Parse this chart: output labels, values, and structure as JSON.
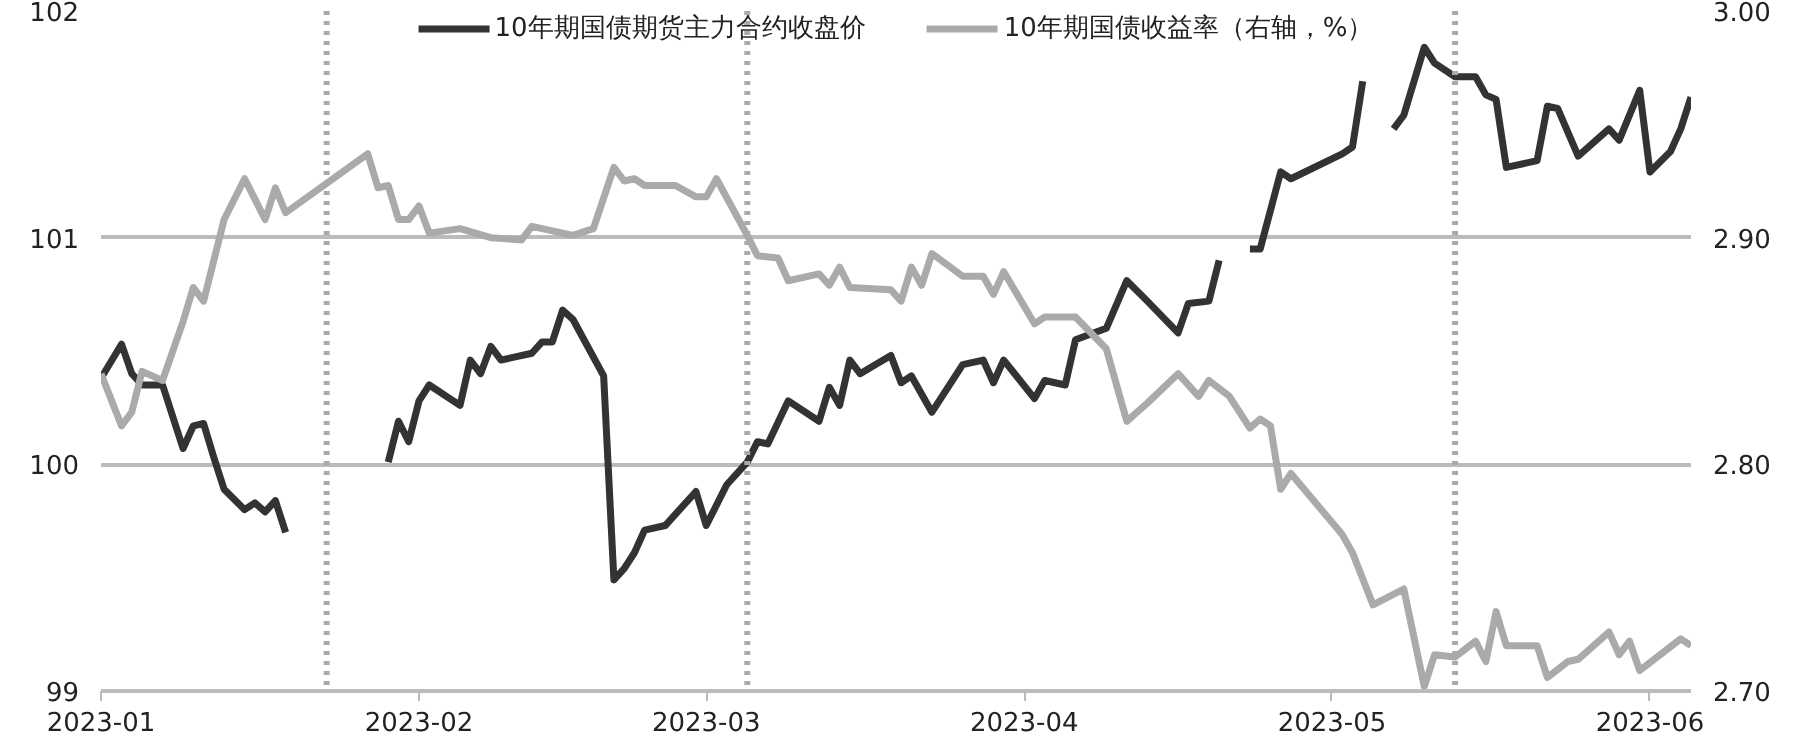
{
  "chart_data": {
    "type": "line",
    "xlim": [
      "2023-01-01",
      "2023-06-05"
    ],
    "xticks": [
      {
        "value": "2023-01-01",
        "label": "2023-01"
      },
      {
        "value": "2023-02-01",
        "label": "2023-02"
      },
      {
        "value": "2023-03-01",
        "label": "2023-03"
      },
      {
        "value": "2023-04-01",
        "label": "2023-04"
      },
      {
        "value": "2023-05-01",
        "label": "2023-05"
      },
      {
        "value": "2023-06-01",
        "label": "2023-06"
      }
    ],
    "ylim": [
      99,
      102
    ],
    "yticks": [
      99,
      100,
      101,
      102
    ],
    "y2lim": [
      2.7,
      3.0
    ],
    "y2ticks": [
      {
        "value": 2.7,
        "label": "2.70"
      },
      {
        "value": 2.8,
        "label": "2.80"
      },
      {
        "value": 2.9,
        "label": "2.90"
      },
      {
        "value": 3.0,
        "label": "3.00"
      }
    ],
    "grid": "y",
    "legend": "top",
    "line_style": "solid",
    "series": [
      {
        "name": "10年期国债期货主力合约收盘价",
        "color": "#333333",
        "x": [
          "2023-01-01",
          "2023-01-03",
          "2023-01-04",
          "2023-01-05",
          "2023-01-07",
          "2023-01-09",
          "2023-01-10",
          "2023-01-11",
          "2023-01-12",
          "2023-01-13",
          "2023-01-15",
          "2023-01-16",
          "2023-01-17",
          "2023-01-18",
          "2023-01-19",
          "2023-01-24",
          "2023-01-29",
          "2023-01-30",
          "2023-01-31",
          "2023-02-01",
          "2023-02-02",
          "2023-02-05",
          "2023-02-06",
          "2023-02-07",
          "2023-02-08",
          "2023-02-09",
          "2023-02-12",
          "2023-02-13",
          "2023-02-14",
          "2023-02-15",
          "2023-02-16",
          "2023-02-19",
          "2023-02-20",
          "2023-02-21",
          "2023-02-22",
          "2023-02-23",
          "2023-02-25",
          "2023-02-28",
          "2023-03-01",
          "2023-03-03",
          "2023-03-05",
          "2023-03-06",
          "2023-03-07",
          "2023-03-09",
          "2023-03-12",
          "2023-03-13",
          "2023-03-14",
          "2023-03-15",
          "2023-03-16",
          "2023-03-19",
          "2023-03-20",
          "2023-03-21",
          "2023-03-23",
          "2023-03-26",
          "2023-03-28",
          "2023-03-29",
          "2023-03-30",
          "2023-04-02",
          "2023-04-03",
          "2023-04-05",
          "2023-04-06",
          "2023-04-09",
          "2023-04-11",
          "2023-04-13",
          "2023-04-16",
          "2023-04-17",
          "2023-04-19",
          "2023-04-20",
          "2023-04-21",
          "2023-04-23",
          "2023-04-24",
          "2023-04-26",
          "2023-04-27",
          "2023-05-02",
          "2023-05-03",
          "2023-05-04",
          "2023-05-05",
          "2023-05-07",
          "2023-05-08",
          "2023-05-10",
          "2023-05-11",
          "2023-05-13",
          "2023-05-15",
          "2023-05-16",
          "2023-05-17",
          "2023-05-18",
          "2023-05-21",
          "2023-05-22",
          "2023-05-23",
          "2023-05-25",
          "2023-05-28",
          "2023-05-29",
          "2023-05-31",
          "2023-06-01",
          "2023-06-03",
          "2023-06-04",
          "2023-06-05"
        ],
        "values": [
          100.38,
          100.53,
          100.4,
          100.35,
          100.35,
          100.07,
          100.17,
          100.18,
          100.03,
          99.89,
          99.8,
          99.83,
          99.79,
          99.84,
          99.7,
          null,
          100.01,
          100.19,
          100.1,
          100.28,
          100.35,
          100.26,
          100.46,
          100.4,
          100.52,
          100.46,
          100.49,
          100.54,
          100.54,
          100.68,
          100.64,
          100.39,
          99.49,
          99.54,
          99.61,
          99.71,
          99.73,
          99.88,
          99.73,
          99.91,
          100.01,
          100.1,
          100.09,
          100.28,
          100.19,
          100.34,
          100.26,
          100.46,
          100.4,
          100.48,
          100.36,
          100.39,
          100.23,
          100.44,
          100.46,
          100.36,
          100.46,
          100.29,
          100.37,
          100.35,
          100.55,
          100.6,
          100.81,
          100.72,
          100.58,
          100.71,
          100.72,
          100.9,
          null,
          100.95,
          100.95,
          101.29,
          101.26,
          101.37,
          101.4,
          101.69,
          null,
          101.48,
          101.54,
          101.84,
          101.77,
          101.71,
          101.71,
          101.63,
          101.61,
          101.31,
          101.34,
          101.58,
          101.57,
          101.36,
          101.48,
          101.43,
          101.65,
          101.29,
          101.38,
          101.48,
          101.62
        ]
      },
      {
        "name": "10年期国债收益率（右轴，%）",
        "color": "#aaaaaa",
        "axis": "y2",
        "x": [
          "2023-01-01",
          "2023-01-03",
          "2023-01-04",
          "2023-01-05",
          "2023-01-07",
          "2023-01-09",
          "2023-01-10",
          "2023-01-11",
          "2023-01-13",
          "2023-01-15",
          "2023-01-17",
          "2023-01-18",
          "2023-01-19",
          "2023-01-27",
          "2023-01-28",
          "2023-01-29",
          "2023-01-30",
          "2023-01-31",
          "2023-02-01",
          "2023-02-02",
          "2023-02-05",
          "2023-02-08",
          "2023-02-11",
          "2023-02-12",
          "2023-02-16",
          "2023-02-18",
          "2023-02-20",
          "2023-02-21",
          "2023-02-22",
          "2023-02-23",
          "2023-02-26",
          "2023-02-28",
          "2023-03-01",
          "2023-03-02",
          "2023-03-05",
          "2023-03-06",
          "2023-03-08",
          "2023-03-09",
          "2023-03-12",
          "2023-03-13",
          "2023-03-14",
          "2023-03-15",
          "2023-03-19",
          "2023-03-20",
          "2023-03-21",
          "2023-03-22",
          "2023-03-23",
          "2023-03-26",
          "2023-03-28",
          "2023-03-29",
          "2023-03-30",
          "2023-04-02",
          "2023-04-03",
          "2023-04-06",
          "2023-04-09",
          "2023-04-11",
          "2023-04-12",
          "2023-04-13",
          "2023-04-16",
          "2023-04-18",
          "2023-04-19",
          "2023-04-21",
          "2023-04-23",
          "2023-04-24",
          "2023-04-25",
          "2023-04-26",
          "2023-04-27",
          "2023-05-02",
          "2023-05-03",
          "2023-05-05",
          "2023-05-08",
          "2023-05-10",
          "2023-05-11",
          "2023-05-13",
          "2023-05-15",
          "2023-05-16",
          "2023-05-17",
          "2023-05-18",
          "2023-05-21",
          "2023-05-22",
          "2023-05-24",
          "2023-05-25",
          "2023-05-28",
          "2023-05-29",
          "2023-05-30",
          "2023-05-31",
          "2023-06-04",
          "2023-06-05"
        ],
        "values": [
          2.84,
          2.817,
          2.823,
          2.841,
          2.837,
          2.863,
          2.878,
          2.872,
          2.908,
          2.926,
          2.908,
          2.922,
          2.911,
          2.937,
          2.922,
          2.923,
          2.908,
          2.908,
          2.914,
          2.902,
          2.904,
          2.9,
          2.899,
          2.905,
          2.901,
          2.904,
          2.931,
          2.925,
          2.926,
          2.923,
          2.923,
          2.918,
          2.918,
          2.926,
          2.901,
          2.892,
          2.891,
          2.881,
          2.884,
          2.879,
          2.887,
          2.878,
          2.877,
          2.872,
          2.887,
          2.879,
          2.893,
          2.883,
          2.883,
          2.875,
          2.885,
          2.862,
          2.865,
          2.865,
          2.851,
          2.819,
          2.823,
          2.827,
          2.84,
          2.83,
          2.837,
          2.83,
          2.816,
          2.82,
          2.817,
          2.789,
          2.796,
          2.769,
          2.761,
          2.738,
          2.745,
          2.702,
          2.716,
          2.715,
          2.722,
          2.713,
          2.735,
          2.72,
          2.72,
          2.706,
          2.713,
          2.714,
          2.726,
          2.716,
          2.722,
          2.709,
          2.723,
          2.72
        ]
      }
    ],
    "ref_lines": [
      {
        "axis": "x",
        "value": "2023-01-23",
        "color": "#aaaaaa",
        "line_style": "dotted"
      },
      {
        "axis": "x",
        "value": "2023-03-05",
        "color": "#aaaaaa",
        "line_style": "dotted"
      },
      {
        "axis": "x",
        "value": "2023-05-13",
        "color": "#aaaaaa",
        "line_style": "dotted"
      }
    ]
  }
}
